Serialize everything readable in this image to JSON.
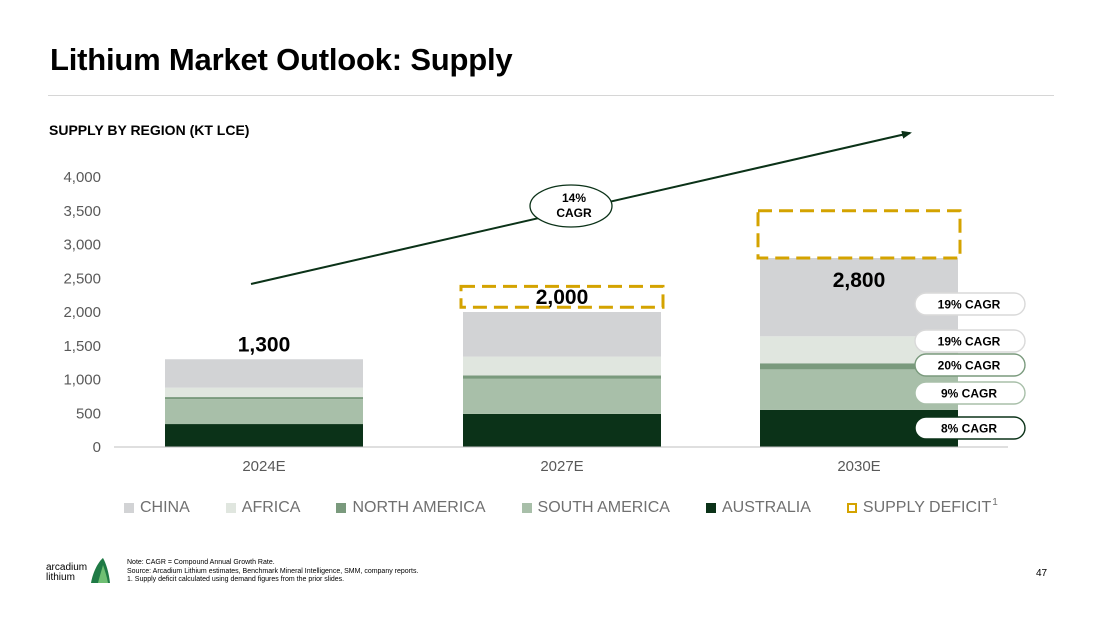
{
  "header": {
    "title": "Lithium Market Outlook: Supply",
    "subtitle": "SUPPLY BY REGION (KT LCE)"
  },
  "chart_data": {
    "type": "bar",
    "stacked": true,
    "title": "SUPPLY BY REGION (KT LCE)",
    "xlabel": "",
    "ylabel": "",
    "ylim": [
      0,
      4000
    ],
    "yticks": [
      0,
      500,
      1000,
      1500,
      2000,
      2500,
      3000,
      3500,
      4000
    ],
    "ytick_labels": [
      "0",
      "500",
      "1,000",
      "1,500",
      "2,000",
      "2,500",
      "3,000",
      "3,500",
      "4,000"
    ],
    "categories": [
      "2024E",
      "2027E",
      "2030E"
    ],
    "series": [
      {
        "name": "AUSTRALIA",
        "key": "australia",
        "color": "#0b3218",
        "values": [
          340,
          490,
          550
        ]
      },
      {
        "name": "SOUTH AMERICA",
        "key": "south_america",
        "color": "#a8bfa9",
        "values": [
          370,
          520,
          600
        ]
      },
      {
        "name": "NORTH AMERICA",
        "key": "north_america",
        "color": "#7a9a7d",
        "values": [
          30,
          50,
          90
        ]
      },
      {
        "name": "AFRICA",
        "key": "africa",
        "color": "#e0e6df",
        "values": [
          140,
          280,
          400
        ]
      },
      {
        "name": "CHINA",
        "key": "china",
        "color": "#d2d3d5",
        "values": [
          420,
          660,
          1160
        ]
      }
    ],
    "supply_deficit": {
      "name": "SUPPLY DEFICIT",
      "superscript": "1",
      "color": "#d4a300",
      "ranges": [
        null,
        [
          2070,
          2380
        ],
        [
          2800,
          3500
        ]
      ]
    },
    "totals": [
      "1,300",
      "2,000",
      "2,800"
    ],
    "overall_cagr": {
      "percent": "14%",
      "label": "CAGR"
    },
    "region_cagr": [
      {
        "region": "CHINA",
        "label": "19% CAGR"
      },
      {
        "region": "AFRICA",
        "label": "19% CAGR"
      },
      {
        "region": "NORTH AMERICA",
        "label": "20% CAGR"
      },
      {
        "region": "SOUTH AMERICA",
        "label": "9% CAGR"
      },
      {
        "region": "AUSTRALIA",
        "label": "8% CAGR"
      }
    ],
    "legend": [
      {
        "label": "CHINA",
        "color": "#d2d3d5"
      },
      {
        "label": "AFRICA",
        "color": "#e0e6df"
      },
      {
        "label": "NORTH AMERICA",
        "color": "#7a9a7d"
      },
      {
        "label": "SOUTH AMERICA",
        "color": "#a8bfa9"
      },
      {
        "label": "AUSTRALIA",
        "color": "#0b3218"
      }
    ]
  },
  "footer": {
    "logo_line1": "arcadium",
    "logo_line2": "lithium",
    "notes": [
      "Note: CAGR = Compound Annual Growth Rate.",
      "Source: Arcadium Lithium estimates, Benchmark Mineral Intelligence, SMM, company reports.",
      "1. Supply deficit calculated using demand figures from the prior slides."
    ],
    "page_number": "47"
  }
}
